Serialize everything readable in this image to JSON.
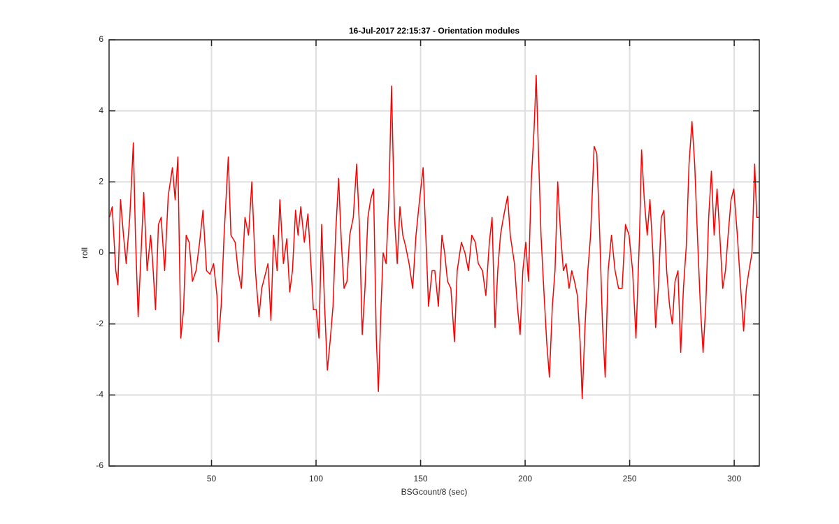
{
  "chart_data": {
    "type": "line",
    "title": "16-Jul-2017 22:15:37 - Orientation modules",
    "xlabel": "BSGcount/8 (sec)",
    "ylabel": "roll",
    "color": "#ff0000",
    "grid": true,
    "xlim": [
      1,
      312
    ],
    "ylim": [
      -6,
      6
    ],
    "xticks": [
      50,
      100,
      150,
      200,
      250,
      300
    ],
    "yticks": [
      -6,
      -4,
      -2,
      0,
      2,
      4,
      6
    ],
    "x": [
      1.2,
      2.5,
      4.2,
      5.2,
      6.5,
      7.9,
      9.2,
      10.9,
      12.6,
      13.6,
      14.9,
      15.9,
      17.6,
      19.2,
      20.9,
      21.9,
      23.2,
      24.6,
      25.9,
      27.6,
      29.3,
      31.3,
      32.6,
      33.9,
      35.3,
      36.6,
      37.9,
      39.3,
      40.9,
      42.6,
      44.3,
      45.9,
      47.6,
      49.3,
      51.0,
      52.6,
      53.3,
      54.6,
      56.0,
      58.0,
      59.3,
      61.3,
      62.7,
      64.3,
      66.0,
      67.7,
      69.3,
      71.0,
      72.7,
      74.0,
      75.3,
      77.0,
      78.4,
      79.7,
      81.4,
      82.7,
      84.4,
      86.0,
      87.4,
      88.7,
      90.2,
      91.4,
      92.7,
      94.4,
      96.1,
      97.7,
      98.7,
      100.1,
      101.4,
      102.7,
      104.1,
      105.4,
      106.7,
      108.1,
      109.4,
      110.8,
      112.1,
      113.4,
      114.8,
      116.1,
      117.8,
      119.4,
      120.8,
      122.1,
      123.4,
      124.8,
      126.1,
      127.5,
      128.8,
      129.8,
      131.1,
      132.1,
      133.5,
      134.8,
      136.1,
      137.5,
      138.8,
      140.1,
      141.5,
      142.8,
      144.5,
      146.2,
      147.8,
      149.5,
      151.2,
      152.5,
      153.8,
      155.5,
      156.8,
      158.5,
      160.2,
      161.5,
      162.9,
      164.5,
      166.2,
      167.5,
      169.5,
      171.2,
      172.9,
      174.5,
      176.2,
      177.6,
      179.6,
      181.2,
      182.9,
      184.2,
      185.6,
      186.9,
      188.2,
      189.6,
      191.6,
      192.9,
      194.9,
      196.3,
      197.6,
      198.9,
      200.3,
      201.6,
      202.9,
      204.3,
      205.3,
      206.3,
      207.6,
      208.9,
      210.3,
      211.6,
      213.0,
      214.3,
      215.6,
      217.0,
      218.3,
      219.6,
      221.0,
      222.3,
      223.6,
      225.0,
      226.3,
      227.3,
      228.7,
      230.0,
      231.3,
      233.0,
      234.3,
      235.7,
      237.0,
      238.3,
      239.7,
      241.3,
      243.0,
      244.7,
      246.4,
      248.0,
      249.7,
      251.4,
      253.0,
      254.7,
      255.7,
      257.0,
      258.4,
      259.7,
      261.1,
      262.4,
      263.7,
      265.1,
      266.4,
      267.7,
      269.1,
      270.4,
      271.7,
      273.1,
      274.4,
      275.7,
      277.1,
      278.4,
      279.8,
      281.1,
      282.4,
      283.8,
      285.1,
      286.4,
      287.8,
      289.1,
      290.4,
      291.8,
      293.1,
      294.5,
      295.8,
      297.1,
      298.5,
      299.8,
      301.5,
      303.1,
      304.5,
      305.8,
      307.1,
      308.5,
      309.8,
      310.8,
      311.8
    ],
    "values": [
      1.0,
      1.3,
      -0.5,
      -0.9,
      1.5,
      0.5,
      -0.3,
      1.0,
      3.1,
      0.5,
      -1.8,
      -0.5,
      1.7,
      -0.5,
      0.5,
      -0.3,
      -1.6,
      0.8,
      1.0,
      -0.5,
      1.6,
      2.4,
      1.5,
      2.7,
      -2.4,
      -1.6,
      0.5,
      0.3,
      -0.8,
      -0.5,
      0.3,
      1.2,
      -0.5,
      -0.6,
      -0.3,
      -1.2,
      -2.5,
      -1.5,
      0.5,
      2.7,
      0.5,
      0.3,
      -0.5,
      -1.0,
      1.0,
      0.5,
      2.0,
      -0.5,
      -1.8,
      -1.0,
      -0.7,
      -0.3,
      -1.9,
      0.5,
      -0.5,
      1.5,
      -0.3,
      0.4,
      -1.1,
      -0.5,
      1.2,
      0.5,
      1.3,
      0.3,
      1.1,
      -0.5,
      -1.6,
      -1.6,
      -2.4,
      0.8,
      -1.5,
      -3.3,
      -2.5,
      -1.5,
      0.6,
      2.1,
      0.3,
      -1.0,
      -0.8,
      0.5,
      1.0,
      2.5,
      0.7,
      -2.3,
      -1.0,
      1.0,
      1.5,
      1.8,
      -2.4,
      -3.9,
      -1.5,
      0,
      -0.3,
      1.5,
      4.7,
      1.0,
      -0.3,
      1.3,
      0.5,
      0.2,
      -0.3,
      -1.0,
      0.5,
      1.5,
      2.4,
      0.5,
      -1.5,
      -0.5,
      -0.5,
      -1.5,
      0.5,
      0,
      -0.8,
      -1.0,
      -2.5,
      -0.5,
      0.3,
      0,
      -0.5,
      0.5,
      0.3,
      -0.3,
      -0.5,
      -1.2,
      0.3,
      1.0,
      -2.1,
      -0.5,
      0.5,
      1.0,
      1.6,
      0.5,
      -0.3,
      -1.5,
      -2.3,
      -0.5,
      0.3,
      -0.8,
      2.0,
      3.5,
      5.0,
      3.0,
      0.5,
      -1.0,
      -2.5,
      -3.5,
      -1.5,
      -0.5,
      2.0,
      0.5,
      -0.5,
      -0.3,
      -1.0,
      -0.5,
      -0.8,
      -1.2,
      -2.5,
      -4.1,
      -2.0,
      -0.5,
      0.5,
      3.0,
      2.8,
      0.5,
      -2.0,
      -3.5,
      -0.5,
      0.5,
      -0.5,
      -1.0,
      -1.0,
      0.8,
      0.5,
      -0.5,
      -2.4,
      0.5,
      2.9,
      1.5,
      0.5,
      1.5,
      0.0,
      -2.1,
      -1.0,
      1.0,
      1.2,
      -0.5,
      -1.5,
      -2.0,
      -0.8,
      -0.5,
      -2.8,
      -1.0,
      0.2,
      2.5,
      3.7,
      2.5,
      0.5,
      -1.5,
      -2.8,
      -1.5,
      1.0,
      2.3,
      0.5,
      1.8,
      0.5,
      -1.0,
      -0.5,
      0.5,
      1.5,
      1.8,
      0.5,
      -1.0,
      -2.2,
      -1.0,
      -0.5,
      0.0,
      2.5,
      1.0,
      1.0
    ]
  }
}
